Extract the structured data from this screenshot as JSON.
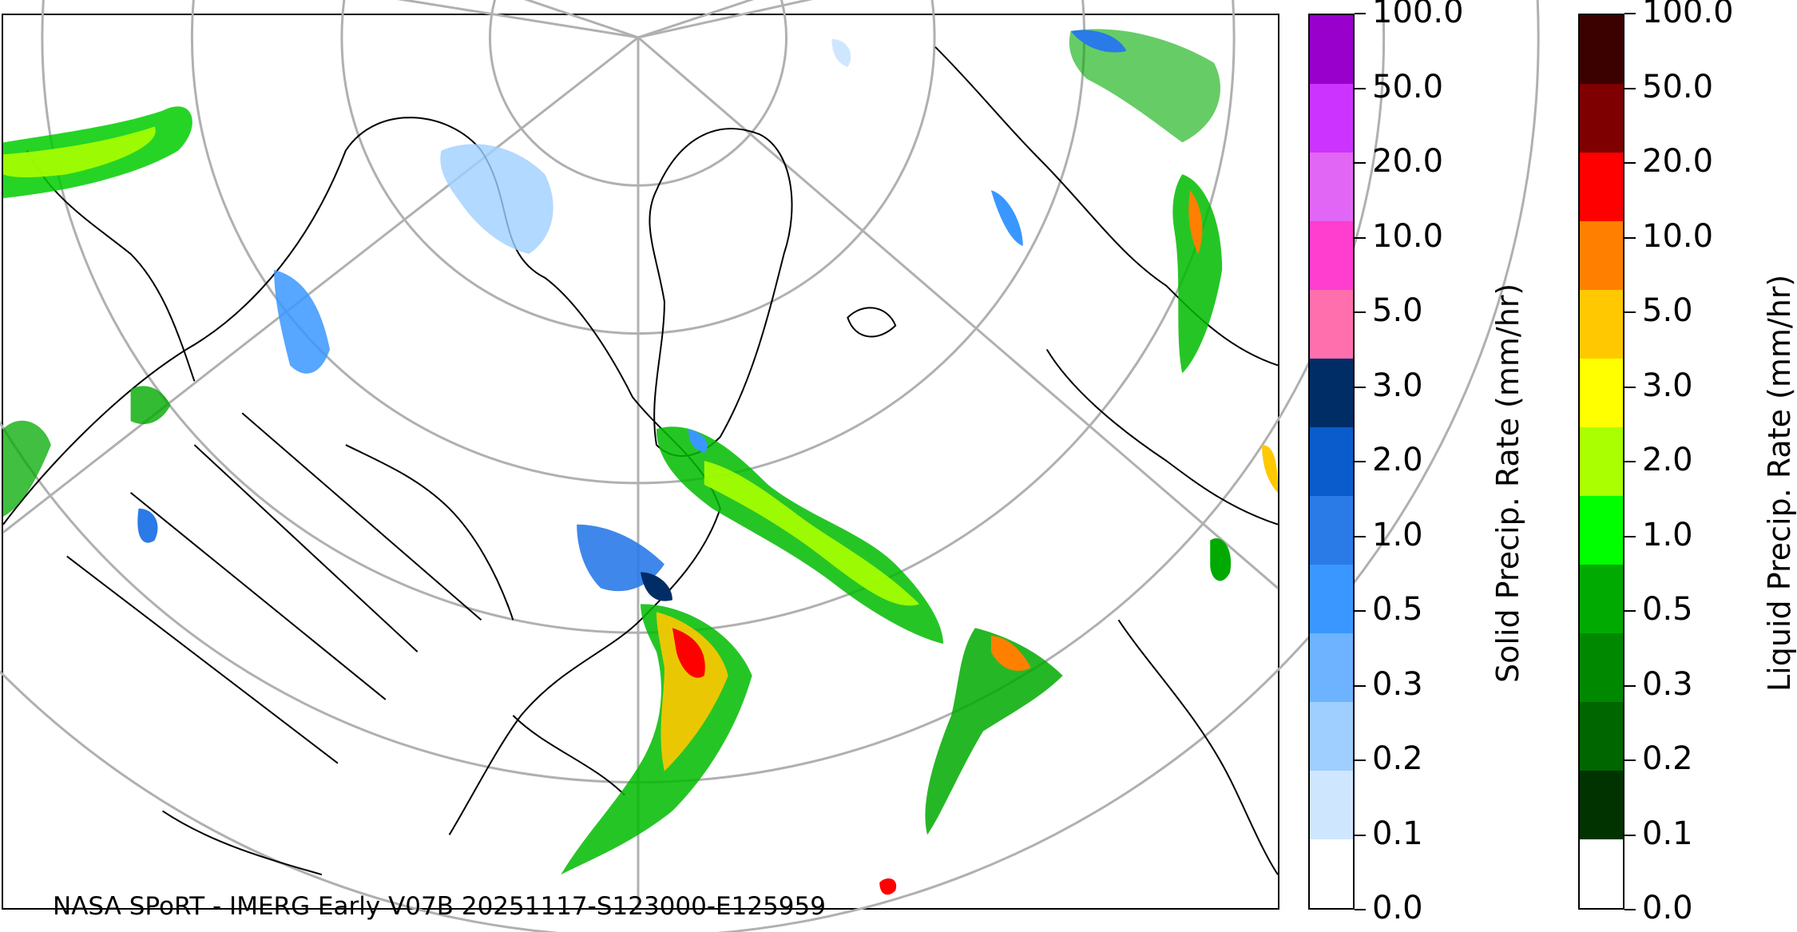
{
  "map": {
    "footer": "NASA SPoRT - IMERG Early V07B 20251117-S123000-E125959"
  },
  "solid_colorbar": {
    "title": "Solid Precip. Rate (mm/hr)",
    "ticks": [
      "0.0",
      "0.1",
      "0.2",
      "0.3",
      "0.5",
      "1.0",
      "2.0",
      "3.0",
      "5.0",
      "10.0",
      "20.0",
      "50.0",
      "100.0"
    ],
    "colors": [
      "#ffffff",
      "#cfe6ff",
      "#9fcfff",
      "#6db3ff",
      "#3a97ff",
      "#2a7ae8",
      "#0a5ccc",
      "#002d66",
      "#ff6fae",
      "#ff3dcf",
      "#e266f5",
      "#cc33ff",
      "#9900cc"
    ]
  },
  "liquid_colorbar": {
    "title": "Liquid Precip. Rate (mm/hr)",
    "ticks": [
      "0.0",
      "0.1",
      "0.2",
      "0.3",
      "0.5",
      "1.0",
      "2.0",
      "3.0",
      "5.0",
      "10.0",
      "20.0",
      "50.0",
      "100.0"
    ],
    "colors": [
      "#ffffff",
      "#003300",
      "#006600",
      "#008800",
      "#00aa00",
      "#00ff00",
      "#aaff00",
      "#ffff00",
      "#ffc800",
      "#ff8000",
      "#ff0000",
      "#7f0000",
      "#3b0000"
    ]
  }
}
